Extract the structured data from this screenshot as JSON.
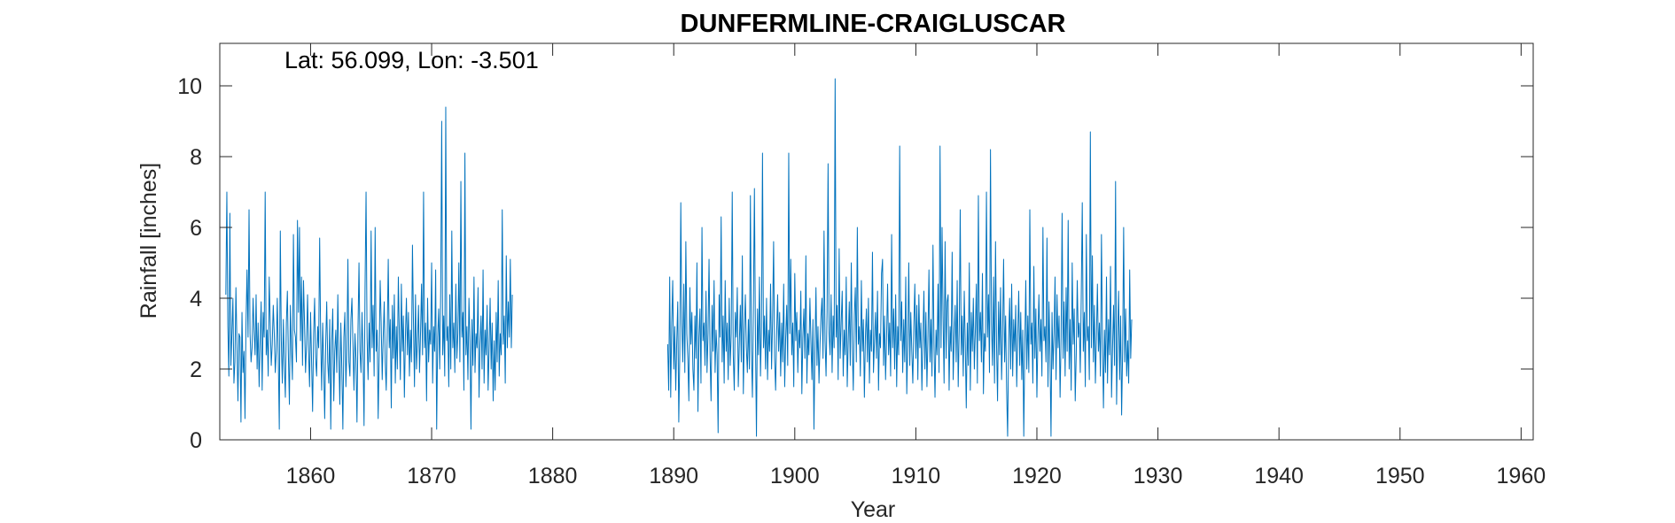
{
  "chart_data": {
    "type": "line",
    "title": "DUNFERMLINE-CRAIGLUSCAR",
    "annotation": "Lat: 56.099, Lon: -3.501",
    "xlabel": "Year",
    "ylabel": "Rainfall [inches]",
    "xlim": [
      1852.5,
      1961
    ],
    "ylim": [
      0,
      11.2
    ],
    "xticks": [
      1860,
      1870,
      1880,
      1890,
      1900,
      1910,
      1920,
      1930,
      1940,
      1950,
      1960
    ],
    "yticks": [
      0,
      2,
      4,
      6,
      8,
      10
    ],
    "grid": false,
    "box": true,
    "series": [
      {
        "color": "#0072BD",
        "monthly": true,
        "segments": [
          {
            "start_year": 1853,
            "values": [
              4.1,
              7.0,
              3.2,
              1.8,
              6.4,
              2.1,
              3.0,
              4.0,
              1.6,
              2.2,
              4.3,
              2.7,
              1.1,
              3.0,
              2.9,
              0.5,
              3.6,
              1.9,
              2.5,
              0.6,
              3.3,
              4.8,
              2.9,
              6.5,
              3.0,
              2.2,
              2.6,
              4.0,
              3.1,
              2.4,
              4.1,
              2.0,
              3.3,
              1.5,
              2.8,
              3.9,
              1.4,
              3.6,
              2.9,
              7.0,
              2.4,
              3.1,
              1.8,
              4.6,
              3.3,
              2.1,
              2.7,
              3.8,
              3.0,
              1.9,
              2.5,
              4.0,
              2.3,
              0.3,
              5.9,
              2.8,
              1.6,
              3.4,
              2.1,
              1.2,
              3.3,
              4.2,
              2.4,
              1.0,
              3.8,
              2.6,
              1.7,
              5.8,
              3.1,
              2.9,
              2.2,
              6.2,
              3.6,
              6.0,
              2.8,
              4.6,
              2.1,
              4.5,
              3.3,
              1.9,
              2.7,
              4.1,
              2.5,
              1.5,
              3.6,
              2.2,
              0.8,
              3.0,
              4.0,
              2.3,
              1.8,
              3.2,
              2.6,
              5.7,
              2.9,
              1.4,
              3.3,
              2.1,
              0.6,
              2.7,
              3.9,
              2.2,
              1.6,
              3.4,
              0.3,
              2.8,
              3.7,
              1.1,
              2.5,
              3.1,
              1.9,
              4.1,
              2.4,
              1.0,
              3.3,
              2.0,
              0.3,
              2.9,
              3.6,
              1.5,
              2.6,
              5.1,
              2.2,
              1.8,
              3.4,
              4.0,
              2.7,
              1.4,
              3.0,
              2.3,
              0.5,
              3.1,
              5.0,
              2.5,
              1.9,
              3.6,
              2.4,
              0.4,
              4.3,
              7.0,
              2.9,
              1.7,
              3.3,
              2.2,
              5.9,
              2.6,
              3.8,
              1.8,
              6.0,
              2.5,
              3.1,
              0.6,
              2.4,
              4.5,
              3.3,
              1.7,
              2.9,
              3.9,
              2.2,
              1.4,
              3.0,
              5.1,
              2.6,
              3.4,
              0.9,
              3.8,
              2.3,
              4.1,
              1.6,
              3.2,
              2.0,
              4.6,
              3.0,
              1.7,
              4.4,
              2.5,
              3.5,
              1.2,
              2.9,
              4.0,
              2.4,
              3.6,
              1.8,
              3.1,
              2.2,
              5.5,
              3.3,
              1.5,
              4.1,
              2.0,
              2.8,
              3.8,
              1.9,
              3.0,
              4.4,
              2.4,
              7.0,
              2.6,
              3.3,
              1.1,
              4.0,
              2.2,
              3.1,
              2.7,
              5.0,
              1.6,
              3.2,
              2.5,
              4.8,
              0.3,
              2.9,
              3.7,
              2.0,
              4.2,
              9.0,
              2.4,
              3.5,
              1.8,
              9.4,
              2.8,
              3.2,
              1.5,
              4.1,
              2.0,
              5.9,
              2.6,
              3.3,
              1.9,
              4.4,
              2.3,
              3.0,
              5.0,
              2.2,
              7.3,
              2.9,
              3.6,
              1.4,
              8.1,
              2.4,
              3.2,
              1.7,
              4.0,
              2.8,
              0.3,
              3.4,
              2.1,
              4.6,
              1.9,
              3.0,
              2.6,
              4.3,
              1.2,
              2.7,
              3.5,
              2.0,
              4.8,
              1.6,
              3.1,
              2.4,
              3.8,
              1.4,
              2.6,
              4.0,
              2.0,
              3.3,
              1.1,
              2.8,
              1.4,
              3.6,
              2.2,
              4.5,
              1.8,
              3.0,
              2.4,
              6.5,
              2.7,
              3.5,
              1.6,
              5.2,
              2.6,
              3.9,
              2.9,
              5.1,
              2.6,
              4.1
            ]
          },
          {
            "start_year": 1889.5,
            "values": [
              2.7,
              1.4,
              4.6,
              1.2,
              3.3,
              4.5,
              2.0,
              3.2,
              1.4,
              2.8,
              3.9,
              0.5,
              2.4,
              6.7,
              3.3,
              2.2,
              4.4,
              1.9,
              5.6,
              3.0,
              2.3,
              1.1,
              4.3,
              2.7,
              3.6,
              2.0,
              1.4,
              3.5,
              2.3,
              5.0,
              0.8,
              2.9,
              3.7,
              1.6,
              6.0,
              2.8,
              3.3,
              2.1,
              4.2,
              1.9,
              3.0,
              5.1,
              2.4,
              1.1,
              3.8,
              2.5,
              4.5,
              1.9,
              3.1,
              2.4,
              0.2,
              4.1,
              2.9,
              6.3,
              2.2,
              3.5,
              1.6,
              4.5,
              2.5,
              3.3,
              1.7,
              4.0,
              2.1,
              3.0,
              7.0,
              2.4,
              1.4,
              3.6,
              2.9,
              4.3,
              1.5,
              2.7,
              3.8,
              2.2,
              5.2,
              1.3,
              3.0,
              4.1,
              2.6,
              1.9,
              3.4,
              2.0,
              6.9,
              2.5,
              1.2,
              3.8,
              7.1,
              2.9,
              0.1,
              3.7,
              2.4,
              4.6,
              1.8,
              3.2,
              8.1,
              2.6,
              3.5,
              2.0,
              4.0,
              1.7,
              3.1,
              2.5,
              4.4,
              2.0,
              3.4,
              5.6,
              2.3,
              1.4,
              3.0,
              4.1,
              2.5,
              3.6,
              1.8,
              3.3,
              2.2,
              4.4,
              1.5,
              2.9,
              3.8,
              2.1,
              8.1,
              3.0,
              5.1,
              2.4,
              3.3,
              1.5,
              4.7,
              2.8,
              3.6,
              1.9,
              3.1,
              2.6,
              4.2,
              1.3,
              2.9,
              3.7,
              2.3,
              5.2,
              1.6,
              3.0,
              2.4,
              4.0,
              2.8,
              1.7,
              3.4,
              0.3,
              2.6,
              4.3,
              2.1,
              3.2,
              1.6,
              2.7,
              3.5,
              4.0,
              2.3,
              5.9,
              2.8,
              1.8,
              3.6,
              7.8,
              3.0,
              2.4,
              4.1,
              1.9,
              3.5,
              2.6,
              10.2,
              2.9,
              3.8,
              1.7,
              5.4,
              2.3,
              3.3,
              4.2,
              1.8,
              3.1,
              2.4,
              4.6,
              1.5,
              2.8,
              3.9,
              2.1,
              5.0,
              2.6,
              1.4,
              3.5,
              4.3,
              2.2,
              6.0,
              2.7,
              3.2,
              1.8,
              4.5,
              2.5,
              3.4,
              1.2,
              2.9,
              3.7,
              2.2,
              4.0,
              1.6,
              3.1,
              2.5,
              5.3,
              1.9,
              2.8,
              3.6,
              2.3,
              4.2,
              1.4,
              3.0,
              2.6,
              4.7,
              5.1,
              2.1,
              3.5,
              1.7,
              2.9,
              4.4,
              2.4,
              3.3,
              1.8,
              5.8,
              2.6,
              3.7,
              2.0,
              4.1,
              1.5,
              3.2,
              2.4,
              8.3,
              2.8,
              3.9,
              1.9,
              3.4,
              2.2,
              4.6,
              1.3,
              2.7,
              5.0,
              2.1,
              3.6,
              2.5,
              1.6,
              3.2,
              4.4,
              2.3,
              3.8,
              1.7,
              4.1,
              2.6,
              3.3,
              1.4,
              2.8,
              4.2,
              2.0,
              3.6,
              1.5,
              2.9,
              4.8,
              2.2,
              3.4,
              1.8,
              5.5,
              2.7,
              1.2,
              3.1,
              2.4,
              4.4,
              1.9,
              8.3,
              2.6,
              6.0,
              3.5,
              1.6,
              5.6,
              2.3,
              3.9,
              4.1,
              1.4,
              3.2,
              2.5,
              5.3,
              1.7,
              2.9,
              3.8,
              2.2,
              4.5,
              1.5,
              3.1,
              6.5,
              2.4,
              3.5,
              1.8,
              4.2,
              2.7,
              0.9,
              3.3,
              2.1,
              5.0,
              1.4,
              3.6,
              2.5,
              4.0,
              2.0,
              3.1,
              4.4,
              1.6,
              6.9,
              2.8,
              3.6,
              2.2,
              4.7,
              1.3,
              3.0,
              2.5,
              7.0,
              2.9,
              4.1,
              1.9,
              8.2,
              3.3,
              2.1,
              4.6,
              1.6,
              5.6,
              2.7,
              1.1,
              3.9,
              2.4,
              4.3,
              1.7,
              3.0,
              5.1,
              2.2,
              3.5,
              1.4,
              0.1,
              2.8,
              4.0,
              2.0,
              4.4,
              1.8,
              3.4,
              2.5,
              3.8,
              1.5,
              2.9,
              4.2,
              2.1,
              3.6,
              1.7,
              3.1,
              0.1,
              2.6,
              4.5,
              2.0,
              3.5,
              1.9,
              6.5,
              2.7,
              3.3,
              1.6,
              4.9,
              2.3,
              3.7,
              1.2,
              2.9,
              4.1,
              2.5,
              3.4,
              1.8,
              6.0,
              2.8,
              3.2,
              2.2,
              5.7,
              1.5,
              3.9,
              2.4,
              0.1,
              3.6,
              2.0,
              3.0,
              4.6,
              1.7,
              4.1,
              2.6,
              3.5,
              1.2,
              2.9,
              6.4,
              2.3,
              3.9,
              1.8,
              4.3,
              2.5,
              6.2,
              2.0,
              3.4,
              1.4,
              5.0,
              2.7,
              3.7,
              1.1,
              2.4,
              4.5,
              2.9,
              3.3,
              1.9,
              4.1,
              6.7,
              2.5,
              3.6,
              1.5,
              5.8,
              2.8,
              3.2,
              1.7,
              8.7,
              2.6,
              5.2,
              2.2,
              3.8,
              1.6,
              2.9,
              4.4,
              2.5,
              3.3,
              1.8,
              5.8,
              2.7,
              0.9,
              3.1,
              1.9,
              4.6,
              1.6,
              3.4,
              2.4,
              4.9,
              1.2,
              2.6,
              3.8,
              2.1,
              7.3,
              1.0,
              2.9,
              4.2,
              1.7,
              3.5,
              0.7,
              2.5,
              6.0,
              2.2,
              3.7,
              1.8,
              2.8,
              1.6,
              4.8,
              2.3,
              3.4
            ]
          }
        ]
      }
    ]
  }
}
